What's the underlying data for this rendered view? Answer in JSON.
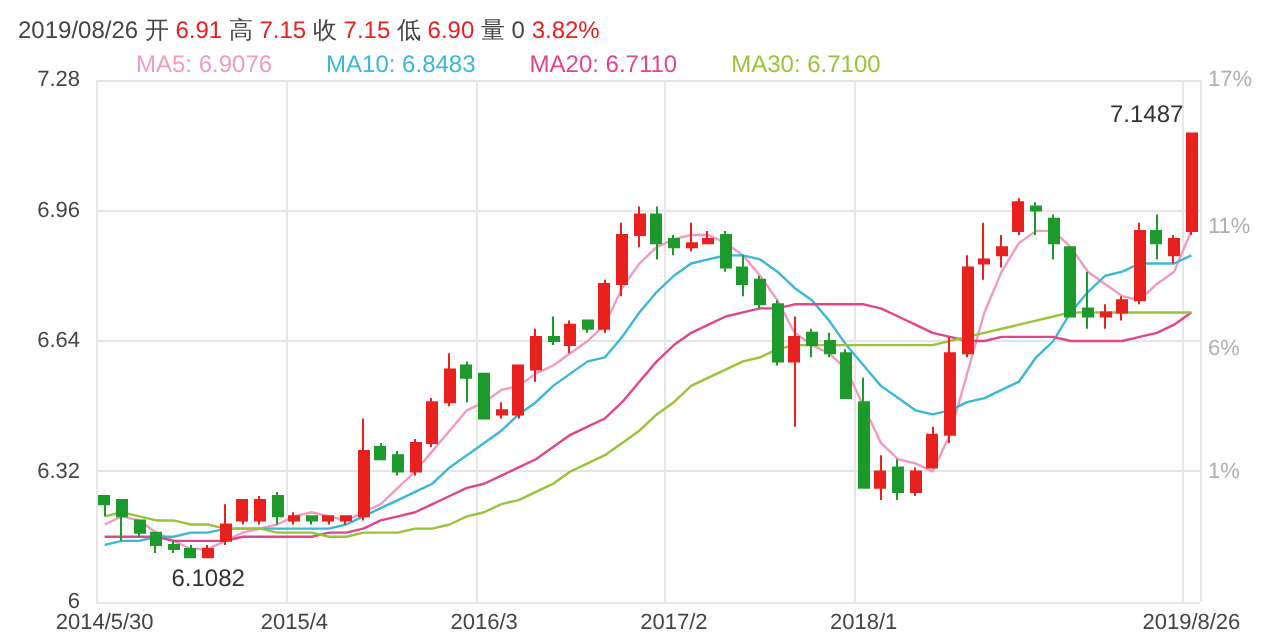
{
  "chart_data": {
    "type": "candlestick",
    "title": "2019/08/26 开 6.91 高 7.15 收 7.15 低 6.90 量 0 3.82%",
    "categories": [
      "2014/5/30",
      null,
      null,
      null,
      null,
      null,
      null,
      null,
      null,
      null,
      null,
      "2015/4",
      null,
      null,
      null,
      null,
      null,
      null,
      null,
      null,
      null,
      null,
      "2016/3",
      null,
      null,
      null,
      null,
      null,
      null,
      null,
      null,
      null,
      null,
      "2017/2",
      null,
      null,
      null,
      null,
      null,
      null,
      null,
      null,
      null,
      null,
      "2018/1",
      null,
      null,
      null,
      null,
      null,
      null,
      null,
      null,
      null,
      null,
      null,
      null,
      null,
      null,
      null,
      null,
      null,
      null,
      "2019/8/26"
    ],
    "ohlc": [
      [
        6.26,
        6.26,
        6.21,
        6.24
      ],
      [
        6.25,
        6.25,
        6.15,
        6.21
      ],
      [
        6.2,
        6.2,
        6.16,
        6.17
      ],
      [
        6.17,
        6.17,
        6.12,
        6.14
      ],
      [
        6.14,
        6.15,
        6.12,
        6.13
      ],
      [
        6.13,
        6.14,
        6.11,
        6.11
      ],
      [
        6.11,
        6.14,
        6.1082,
        6.13
      ],
      [
        6.15,
        6.24,
        6.14,
        6.19
      ],
      [
        6.2,
        6.25,
        6.19,
        6.25
      ],
      [
        6.2,
        6.26,
        6.19,
        6.25
      ],
      [
        6.26,
        6.27,
        6.19,
        6.21
      ],
      [
        6.2,
        6.22,
        6.19,
        6.21
      ],
      [
        6.21,
        6.21,
        6.19,
        6.2
      ],
      [
        6.2,
        6.21,
        6.19,
        6.21
      ],
      [
        6.2,
        6.21,
        6.19,
        6.21
      ],
      [
        6.21,
        6.45,
        6.2,
        6.37
      ],
      [
        6.38,
        6.39,
        6.35,
        6.35
      ],
      [
        6.36,
        6.37,
        6.31,
        6.32
      ],
      [
        6.32,
        6.4,
        6.31,
        6.39
      ],
      [
        6.39,
        6.5,
        6.38,
        6.49
      ],
      [
        6.49,
        6.61,
        6.48,
        6.57
      ],
      [
        6.58,
        6.59,
        6.49,
        6.55
      ],
      [
        6.56,
        6.56,
        6.45,
        6.45
      ],
      [
        6.46,
        6.49,
        6.45,
        6.47
      ],
      [
        6.46,
        6.58,
        6.45,
        6.58
      ],
      [
        6.57,
        6.67,
        6.54,
        6.65
      ],
      [
        6.65,
        6.7,
        6.63,
        6.64
      ],
      [
        6.63,
        6.69,
        6.61,
        6.68
      ],
      [
        6.69,
        6.69,
        6.66,
        6.67
      ],
      [
        6.67,
        6.79,
        6.66,
        6.78
      ],
      [
        6.78,
        6.93,
        6.75,
        6.9
      ],
      [
        6.9,
        6.97,
        6.87,
        6.95
      ],
      [
        6.95,
        6.97,
        6.84,
        6.88
      ],
      [
        6.89,
        6.9,
        6.85,
        6.87
      ],
      [
        6.87,
        6.93,
        6.86,
        6.88
      ],
      [
        6.88,
        6.91,
        6.88,
        6.89
      ],
      [
        6.9,
        6.91,
        6.81,
        6.82
      ],
      [
        6.82,
        6.85,
        6.75,
        6.78
      ],
      [
        6.79,
        6.8,
        6.72,
        6.73
      ],
      [
        6.73,
        6.74,
        6.58,
        6.59
      ],
      [
        6.59,
        6.7,
        6.43,
        6.65
      ],
      [
        6.66,
        6.67,
        6.6,
        6.63
      ],
      [
        6.64,
        6.66,
        6.6,
        6.61
      ],
      [
        6.61,
        6.62,
        6.5,
        6.5
      ],
      [
        6.49,
        6.55,
        6.28,
        6.28
      ],
      [
        6.28,
        6.36,
        6.25,
        6.32
      ],
      [
        6.33,
        6.35,
        6.25,
        6.27
      ],
      [
        6.27,
        6.33,
        6.26,
        6.32
      ],
      [
        6.33,
        6.43,
        6.33,
        6.41
      ],
      [
        6.41,
        6.65,
        6.39,
        6.61
      ],
      [
        6.61,
        6.85,
        6.6,
        6.82
      ],
      [
        6.83,
        6.93,
        6.79,
        6.84
      ],
      [
        6.85,
        6.9,
        6.82,
        6.87
      ],
      [
        6.91,
        6.99,
        6.9,
        6.98
      ],
      [
        6.97,
        6.98,
        6.9,
        6.96
      ],
      [
        6.94,
        6.95,
        6.84,
        6.88
      ],
      [
        6.87,
        6.87,
        6.7,
        6.7
      ],
      [
        6.72,
        6.81,
        6.67,
        6.7
      ],
      [
        6.7,
        6.73,
        6.67,
        6.71
      ],
      [
        6.71,
        6.75,
        6.69,
        6.74
      ],
      [
        6.74,
        6.93,
        6.73,
        6.91
      ],
      [
        6.91,
        6.95,
        6.84,
        6.88
      ],
      [
        6.85,
        6.9,
        6.83,
        6.89
      ],
      [
        6.91,
        7.1487,
        6.9,
        7.1487
      ]
    ],
    "colors": [
      "#1c9a2c",
      "#1c9a2c",
      "#1c9a2c",
      "#1c9a2c",
      "#1c9a2c",
      "#1c9a2c",
      "#e8201e",
      "#e8201e",
      "#e8201e",
      "#e8201e",
      "#1c9a2c",
      "#e8201e",
      "#1c9a2c",
      "#e8201e",
      "#e8201e",
      "#e8201e",
      "#1c9a2c",
      "#1c9a2c",
      "#e8201e",
      "#e8201e",
      "#e8201e",
      "#1c9a2c",
      "#1c9a2c",
      "#e8201e",
      "#e8201e",
      "#e8201e",
      "#1c9a2c",
      "#e8201e",
      "#1c9a2c",
      "#e8201e",
      "#e8201e",
      "#e8201e",
      "#1c9a2c",
      "#1c9a2c",
      "#e8201e",
      "#e8201e",
      "#1c9a2c",
      "#1c9a2c",
      "#1c9a2c",
      "#1c9a2c",
      "#e8201e",
      "#1c9a2c",
      "#1c9a2c",
      "#1c9a2c",
      "#1c9a2c",
      "#e8201e",
      "#1c9a2c",
      "#e8201e",
      "#e8201e",
      "#e8201e",
      "#e8201e",
      "#e8201e",
      "#e8201e",
      "#e8201e",
      "#1c9a2c",
      "#1c9a2c",
      "#1c9a2c",
      "#1c9a2c",
      "#e8201e",
      "#e8201e",
      "#e8201e",
      "#1c9a2c",
      "#e8201e",
      "#e8201e"
    ],
    "series": [
      {
        "name": "MA5: 6.9076",
        "type": "line",
        "color": "#f39ac0",
        "values": [
          6.19,
          6.21,
          6.2,
          6.17,
          6.15,
          6.13,
          6.13,
          6.15,
          6.17,
          6.18,
          6.19,
          6.21,
          6.22,
          6.21,
          6.2,
          6.22,
          6.24,
          6.28,
          6.32,
          6.37,
          6.42,
          6.47,
          6.49,
          6.52,
          6.53,
          6.56,
          6.58,
          6.61,
          6.64,
          6.68,
          6.77,
          6.83,
          6.87,
          6.89,
          6.9,
          6.9,
          6.88,
          6.85,
          6.8,
          6.74,
          6.66,
          6.63,
          6.61,
          6.57,
          null,
          6.39,
          6.35,
          6.34,
          6.32,
          6.41,
          6.56,
          6.71,
          6.81,
          6.88,
          6.91,
          6.91,
          6.87,
          6.81,
          6.78,
          6.75,
          6.74,
          6.78,
          6.81,
          6.91
        ]
      },
      {
        "name": "MA10: 6.8483",
        "type": "line",
        "color": "#3bb8d6",
        "values": [
          6.14,
          6.15,
          6.15,
          6.16,
          6.16,
          6.17,
          6.17,
          6.18,
          6.18,
          6.18,
          6.18,
          6.18,
          6.18,
          6.18,
          6.19,
          6.21,
          6.23,
          6.25,
          6.27,
          6.29,
          6.33,
          6.36,
          6.39,
          6.42,
          6.46,
          6.49,
          6.53,
          6.56,
          6.59,
          6.6,
          6.65,
          6.71,
          6.76,
          6.8,
          6.83,
          6.84,
          6.85,
          6.85,
          6.84,
          6.81,
          6.77,
          6.74,
          6.69,
          6.63,
          6.58,
          6.53,
          6.5,
          6.47,
          6.46,
          6.47,
          6.49,
          6.5,
          6.52,
          6.54,
          6.6,
          6.64,
          6.71,
          6.76,
          6.8,
          6.81,
          6.83,
          6.83,
          6.83,
          6.85
        ]
      },
      {
        "name": "MA20: 6.7110",
        "type": "line",
        "color": "#e2468a",
        "values": [
          6.16,
          6.16,
          6.16,
          6.16,
          6.15,
          6.15,
          6.15,
          6.15,
          6.16,
          6.16,
          6.16,
          6.16,
          6.16,
          6.17,
          6.17,
          6.18,
          6.2,
          6.21,
          6.22,
          6.24,
          6.26,
          6.28,
          6.29,
          6.31,
          6.33,
          6.35,
          6.38,
          6.41,
          6.43,
          6.45,
          6.49,
          6.54,
          6.59,
          6.63,
          6.66,
          6.68,
          6.7,
          6.71,
          6.72,
          6.72,
          6.73,
          6.73,
          6.73,
          6.73,
          6.73,
          6.72,
          6.7,
          6.68,
          6.66,
          6.65,
          6.64,
          6.64,
          6.65,
          6.65,
          6.65,
          6.65,
          6.64,
          6.64,
          6.64,
          6.64,
          6.65,
          6.66,
          6.68,
          6.71
        ]
      },
      {
        "name": "MA30: 6.7100",
        "type": "line",
        "color": "#9bc33a",
        "values": [
          6.21,
          6.22,
          6.21,
          6.2,
          6.2,
          6.19,
          6.19,
          6.18,
          6.18,
          6.18,
          6.17,
          6.17,
          6.17,
          6.16,
          6.16,
          6.17,
          6.17,
          6.17,
          6.18,
          6.18,
          6.19,
          6.21,
          6.22,
          6.24,
          6.25,
          6.27,
          6.29,
          6.32,
          6.34,
          6.36,
          6.39,
          6.42,
          6.46,
          6.49,
          6.53,
          6.55,
          6.57,
          6.59,
          6.6,
          6.62,
          6.63,
          6.63,
          6.63,
          6.63,
          6.63,
          6.63,
          6.63,
          6.63,
          6.63,
          6.64,
          6.65,
          6.66,
          6.67,
          6.68,
          6.69,
          6.7,
          6.71,
          6.71,
          6.71,
          6.71,
          6.71,
          6.71,
          6.71,
          6.71
        ]
      }
    ],
    "ylim": [
      6,
      7.28
    ],
    "yticks": [
      6,
      6.32,
      6.64,
      6.96,
      7.28
    ],
    "y2lim": [
      -4.33,
      17
    ],
    "y2ticks": [
      {
        "value": 1,
        "label": "1%"
      },
      {
        "value": 6,
        "label": "6%"
      },
      {
        "value": 11,
        "label": "11%"
      },
      {
        "value": 17,
        "label": "17%"
      }
    ],
    "grid": true,
    "legend": "top left",
    "marker": "none",
    "annotations": [
      {
        "text": "6.1082",
        "y": 6.1082
      },
      {
        "text": "7.1487",
        "x": "2019/8/26",
        "y": 7.1487
      }
    ]
  }
}
